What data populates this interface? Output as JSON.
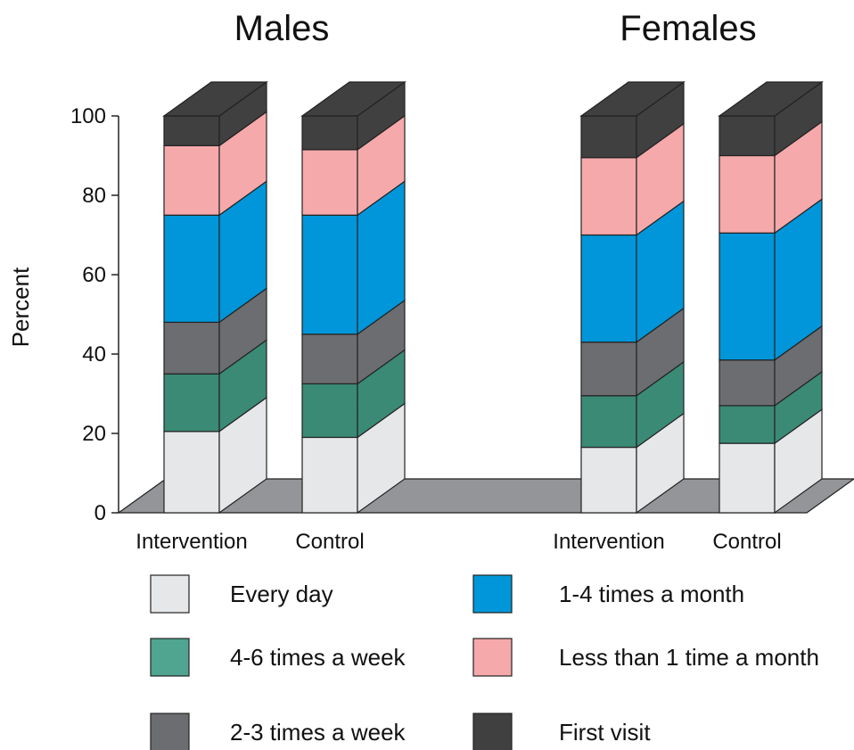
{
  "chart_data": {
    "type": "bar",
    "stacked": true,
    "style": "3d",
    "ylabel": "Percent",
    "ylim": [
      0,
      100
    ],
    "yticks": [
      0,
      20,
      40,
      60,
      80,
      100
    ],
    "panels": [
      {
        "title": "Males",
        "categories": [
          "Intervention",
          "Control"
        ]
      },
      {
        "title": "Females",
        "categories": [
          "Intervention",
          "Control"
        ]
      }
    ],
    "bars": [
      {
        "panel": "Males",
        "category": "Intervention",
        "segments": [
          20.5,
          14.5,
          13,
          27,
          17.5,
          7.5
        ]
      },
      {
        "panel": "Males",
        "category": "Control",
        "segments": [
          19,
          13.5,
          12.5,
          30,
          16.5,
          8.5
        ]
      },
      {
        "panel": "Females",
        "category": "Intervention",
        "segments": [
          16.5,
          13,
          13.5,
          27,
          19.5,
          10.5
        ]
      },
      {
        "panel": "Females",
        "category": "Control",
        "segments": [
          17.5,
          9.5,
          11.5,
          32,
          19.5,
          10
        ]
      }
    ],
    "series": [
      {
        "name": "Every day",
        "color": "#e6e7e8"
      },
      {
        "name": "4-6 times a week",
        "color": "#3a8a76"
      },
      {
        "name": "2-3 times a week",
        "color": "#6c6d70"
      },
      {
        "name": "1-4 times a month",
        "color": "#0096d9"
      },
      {
        "name": "Less than 1 time a month",
        "color": "#f5a9ab"
      },
      {
        "name": "First visit",
        "color": "#404041"
      }
    ],
    "legend_swatch_colors": [
      "#e6e7e8",
      "#50a590",
      "#6c6d70",
      "#0096d9",
      "#f5a9ab",
      "#404041"
    ],
    "floor_color": "#939598",
    "legend_position": "bottom"
  }
}
